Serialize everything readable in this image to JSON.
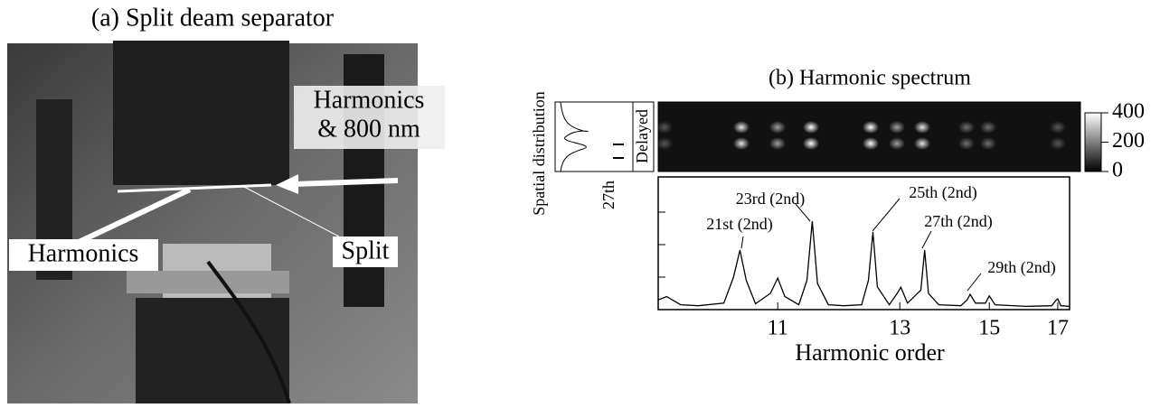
{
  "panel_a": {
    "title": "(a) Split deam separator",
    "label_top": [
      "Harmonics",
      "& 800 nm"
    ],
    "label_left": "Harmonics",
    "label_split": "Split"
  },
  "chart_data": {
    "type": "line",
    "title": "(b) Harmonic spectrum",
    "x_label": "Harmonic order",
    "xscale": "reciprocal",
    "xlim": [
      9.56,
      17.4
    ],
    "xticks": [
      11,
      13,
      15,
      17
    ],
    "ylim": [
      0,
      4
    ],
    "yticks": [
      1,
      2,
      3
    ],
    "color": "#000000",
    "x": [
      9.56,
      9.65,
      9.8,
      10.0,
      10.3,
      10.42,
      10.5,
      10.58,
      10.7,
      10.9,
      11.0,
      11.1,
      11.3,
      11.42,
      11.5,
      11.58,
      11.75,
      12.0,
      12.3,
      12.42,
      12.5,
      12.58,
      12.8,
      12.95,
      13.02,
      13.15,
      13.42,
      13.5,
      13.58,
      13.8,
      14.3,
      14.45,
      14.52,
      14.65,
      14.9,
      15.0,
      15.15,
      16.0,
      16.8,
      16.95,
      17.0,
      17.1,
      17.4
    ],
    "values": [
      0.3,
      0.4,
      0.15,
      0.12,
      0.2,
      1.0,
      1.83,
      0.9,
      0.18,
      0.5,
      0.97,
      0.4,
      0.15,
      0.9,
      2.72,
      0.8,
      0.15,
      0.12,
      0.15,
      0.9,
      2.39,
      0.7,
      0.15,
      0.5,
      0.69,
      0.2,
      0.6,
      1.83,
      0.5,
      0.15,
      0.12,
      0.3,
      0.47,
      0.2,
      0.2,
      0.42,
      0.15,
      0.1,
      0.12,
      0.3,
      0.33,
      0.12,
      0.1
    ],
    "annotations": [
      "21st (2nd)",
      "23rd (2nd)",
      "25th (2nd)",
      "27th (2nd)",
      "29th (2nd)"
    ],
    "inset": {
      "y_label": "Spatial distribution",
      "x_label": "27th",
      "side_label": "Delayed"
    },
    "colorbar": {
      "lim": [
        0,
        400
      ],
      "ticks": [
        0,
        200,
        400
      ]
    }
  }
}
